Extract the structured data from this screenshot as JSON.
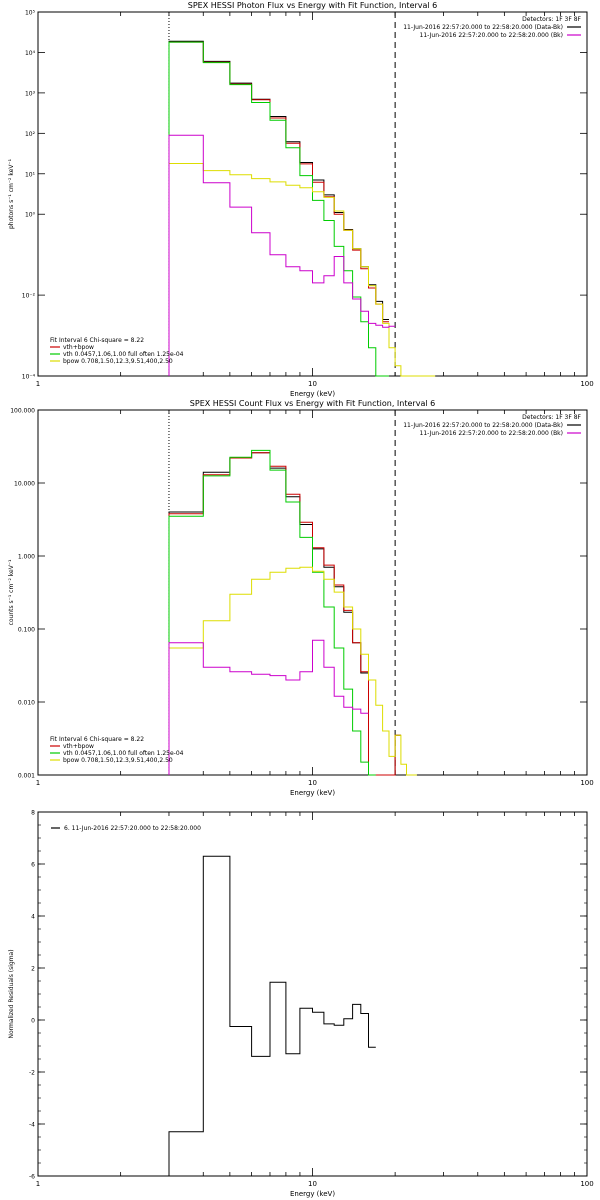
{
  "colors": {
    "data": "#000000",
    "total": "#cc0000",
    "vth": "#00cc00",
    "bpow": "#dddd00",
    "background": "#cc00cc",
    "axis": "#000000"
  },
  "chart_data": [
    {
      "type": "line",
      "step": true,
      "title": "SPEX HESSI Photon Flux vs Energy with Fit Function, Interval 6",
      "xlabel": "Energy (keV)",
      "ylabel": "photons s⁻¹ cm⁻² keV⁻¹",
      "xscale": "log",
      "yscale": "log",
      "xlim": [
        1,
        100
      ],
      "ylim": [
        0.0001,
        100000
      ],
      "xticks": [
        "1",
        "10",
        "100"
      ],
      "yticks": [
        "10⁻⁴",
        "10⁻²",
        "10⁰",
        "10¹",
        "10²",
        "10³",
        "10⁴",
        "10⁵"
      ],
      "ytick_values": [
        0.0001,
        0.01,
        1,
        10,
        100,
        1000,
        10000,
        100000
      ],
      "header": {
        "detectors": "Detectors: 1F 3F 8F",
        "lines": [
          {
            "text": "11-Jun-2016 22:57:20.000 to 22:58:20.000 (Data-Bk)",
            "color": "#000000"
          },
          {
            "text": "11-Jun-2016 22:57:20.000 to 22:58:20.000 (Bk)",
            "color": "#cc00cc"
          }
        ]
      },
      "legend": {
        "placement": "bottom-left",
        "title": "Fit Interval 6   Chi-square = 8.22",
        "entries": [
          {
            "label": "vth+bpow",
            "color": "#cc0000"
          },
          {
            "label": "vth 0.0457,1.06,1.00  full often 1.25e-04",
            "color": "#00cc00"
          },
          {
            "label": "bpow 0.708,1.50,12.3,9.51,400,2.50",
            "color": "#dddd00"
          }
        ]
      },
      "vlines": [
        {
          "x": 3,
          "style": "dotted"
        },
        {
          "x": 20,
          "style": "dashed"
        }
      ],
      "edges": [
        3,
        4,
        5,
        6,
        7,
        8,
        9,
        10,
        11,
        12,
        13,
        14,
        15,
        16,
        17,
        18,
        19,
        20,
        21,
        22,
        24,
        26,
        28
      ],
      "series": [
        {
          "name": "data",
          "color": "#000000",
          "values": [
            19000,
            6000,
            1750,
            700,
            260,
            62,
            19,
            7,
            3,
            1.1,
            0.42,
            0.14,
            0.05,
            0.018,
            0.007,
            0.0025
          ]
        },
        {
          "name": "vth+bpow",
          "color": "#cc0000",
          "values": [
            18000,
            5700,
            1650,
            680,
            240,
            57,
            17.5,
            6.2,
            2.7,
            1.0,
            0.4,
            0.13,
            0.045,
            0.015,
            0.006,
            0.0022
          ]
        },
        {
          "name": "vth",
          "color": "#00cc00",
          "values": [
            18000,
            5600,
            1600,
            580,
            210,
            44,
            9,
            2.2,
            0.7,
            0.16,
            0.04,
            0.009,
            0.0022,
            0.0005,
            0.0001,
            0.0001
          ]
        },
        {
          "name": "bpow",
          "color": "#dddd00",
          "values": [
            18,
            12,
            9.5,
            7.6,
            6.3,
            5.2,
            4.5,
            3.6,
            2.6,
            1.2,
            0.4,
            0.14,
            0.05,
            0.017,
            0.006,
            0.002,
            0.0005,
            0.00018,
            0.0001,
            0.0001,
            0.0001,
            0.0001
          ]
        },
        {
          "name": "background",
          "color": "#cc00cc",
          "values": [
            90,
            6,
            1.5,
            0.35,
            0.1,
            0.05,
            0.04,
            0.02,
            0.03,
            0.09,
            0.02,
            0.008,
            0.004,
            0.002,
            0.0018,
            0.0016,
            0.0017
          ]
        }
      ]
    },
    {
      "type": "line",
      "step": true,
      "title": "SPEX HESSI Count Flux vs Energy with Fit Function, Interval 6",
      "xlabel": "Energy (keV)",
      "ylabel": "counts s⁻¹ cm⁻² keV⁻¹",
      "xscale": "log",
      "yscale": "log",
      "xlim": [
        1,
        100
      ],
      "ylim": [
        0.001,
        100
      ],
      "xticks": [
        "1",
        "10",
        "100"
      ],
      "yticks": [
        "0.001",
        "0.010",
        "0.100",
        "1.000",
        "10.000",
        "100.000"
      ],
      "ytick_values": [
        0.001,
        0.01,
        0.1,
        1,
        10,
        100
      ],
      "header": {
        "detectors": "Detectors: 1F 3F 8F",
        "lines": [
          {
            "text": "11-Jun-2016 22:57:20.000 to 22:58:20.000 (Data-Bk)",
            "color": "#000000"
          },
          {
            "text": "11-Jun-2016 22:57:20.000 to 22:58:20.000 (Bk)",
            "color": "#cc00cc"
          }
        ]
      },
      "legend": {
        "placement": "bottom-left",
        "title": "Fit Interval 6   Chi-square = 8.22",
        "entries": [
          {
            "label": "vth+bpow",
            "color": "#cc0000"
          },
          {
            "label": "vth 0.0457,1.06,1.00  full often 1.25e-04",
            "color": "#00cc00"
          },
          {
            "label": "bpow 0.708,1.50,12.3,9.51,400,2.50",
            "color": "#dddd00"
          }
        ]
      },
      "vlines": [
        {
          "x": 3,
          "style": "dotted"
        },
        {
          "x": 20,
          "style": "dashed"
        }
      ],
      "edges": [
        3,
        4,
        5,
        6,
        7,
        8,
        9,
        10,
        11,
        12,
        13,
        14,
        15,
        16,
        17,
        18,
        19,
        20,
        21,
        22,
        24,
        26,
        28
      ],
      "series": [
        {
          "name": "data",
          "color": "#000000",
          "values": [
            4.0,
            14.0,
            22.0,
            26.0,
            16.0,
            6.5,
            2.7,
            1.25,
            0.7,
            0.38,
            0.17,
            0.065,
            0.025,
            0.0,
            0.0,
            0.0,
            0.0,
            0.0035
          ]
        },
        {
          "name": "vth+bpow",
          "color": "#cc0000",
          "values": [
            3.8,
            13.0,
            22.0,
            26.0,
            17.0,
            7.0,
            2.9,
            1.3,
            0.75,
            0.4,
            0.18,
            0.065,
            0.026,
            0.0,
            0.0,
            0.0,
            0.0,
            0.0035
          ]
        },
        {
          "name": "vth",
          "color": "#00cc00",
          "values": [
            3.5,
            12.5,
            22.5,
            28.0,
            15.0,
            5.5,
            1.8,
            0.6,
            0.2,
            0.055,
            0.015,
            0.004,
            0.0015,
            0.0008
          ]
        },
        {
          "name": "bpow",
          "color": "#dddd00",
          "values": [
            0.055,
            0.13,
            0.3,
            0.48,
            0.6,
            0.68,
            0.7,
            0.62,
            0.48,
            0.32,
            0.2,
            0.1,
            0.045,
            0.02,
            0.009,
            0.004,
            0.0018,
            0.0035,
            0.0014,
            0.001
          ]
        },
        {
          "name": "background",
          "color": "#cc00cc",
          "values": [
            0.065,
            0.03,
            0.026,
            0.024,
            0.023,
            0.02,
            0.026,
            0.07,
            0.03,
            0.012,
            0.0085,
            0.008,
            0.007
          ]
        }
      ]
    },
    {
      "type": "line",
      "step": true,
      "title": "",
      "xlabel": "Energy (keV)",
      "ylabel": "Normalized Residuals (sigma)",
      "xscale": "log",
      "yscale": "linear",
      "xlim": [
        1,
        100
      ],
      "ylim": [
        -6,
        8
      ],
      "xticks": [
        "1",
        "10",
        "100"
      ],
      "yticks": [
        "-6",
        "-4",
        "-2",
        "0",
        "2",
        "4",
        "6",
        "8"
      ],
      "ytick_values": [
        -6,
        -4,
        -2,
        0,
        2,
        4,
        6,
        8
      ],
      "legend": {
        "placement": "top-left",
        "entries": [
          {
            "label": "6. 11-Jun-2016 22:57:20.000 to 22:58:20.000",
            "color": "#000000"
          }
        ]
      },
      "edges": [
        3,
        4,
        5,
        6,
        7,
        8,
        9,
        10,
        11,
        12,
        13,
        14,
        15,
        16,
        17,
        18,
        19,
        20
      ],
      "series": [
        {
          "name": "6. 11-Jun-2016 22:57:20.000 to 22:58:20.000",
          "color": "#000000",
          "values": [
            -4.3,
            6.3,
            -0.25,
            -1.4,
            1.45,
            -1.3,
            0.45,
            0.3,
            -0.15,
            -0.2,
            0.05,
            0.6,
            0.25,
            -1.05
          ]
        }
      ]
    }
  ]
}
